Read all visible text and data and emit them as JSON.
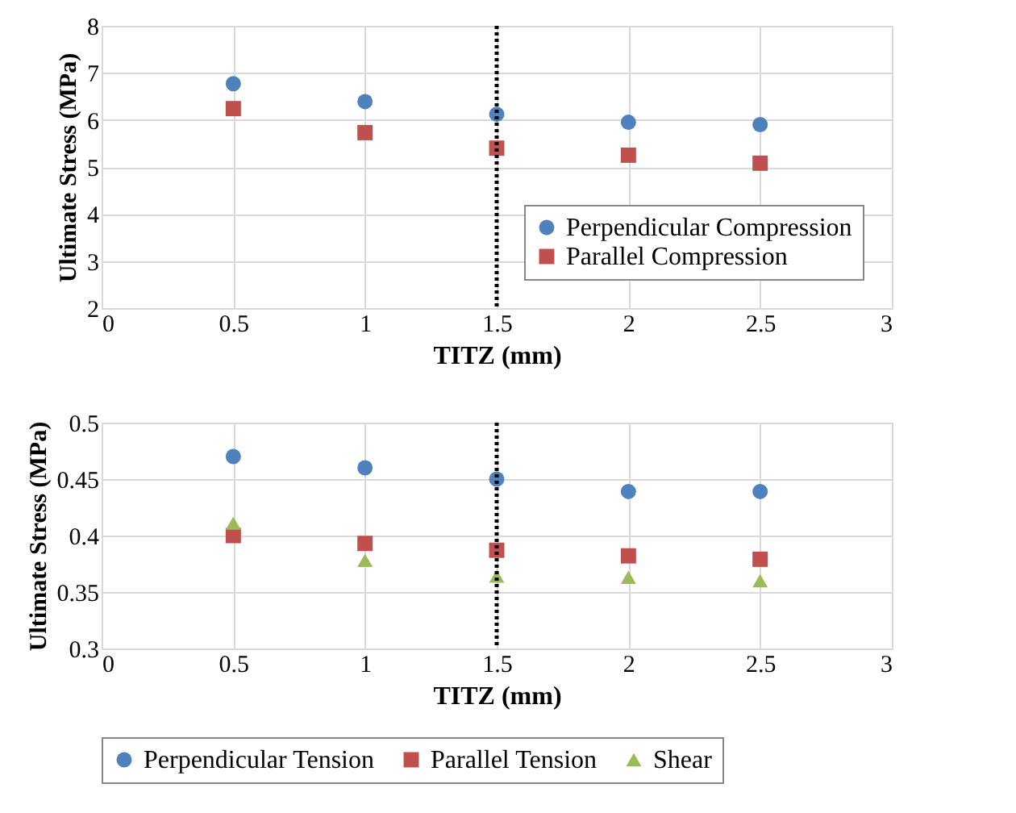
{
  "chart_data": [
    {
      "type": "scatter",
      "xlabel": "TITZ (mm)",
      "ylabel": "Ultimate Stress (MPa)",
      "x": [
        0.5,
        1,
        1.5,
        2,
        2.5
      ],
      "xlim": [
        0,
        3
      ],
      "xticks": [
        0,
        0.5,
        1,
        1.5,
        2,
        2.5,
        3
      ],
      "ylim": [
        2,
        8
      ],
      "yticks": [
        2,
        3,
        4,
        5,
        6,
        7,
        8
      ],
      "grid": true,
      "legend": "bottom right",
      "series": [
        {
          "name": "Perpendicular Compression",
          "color": "#4f81bd",
          "marker": "circle",
          "values": [
            6.77,
            6.39,
            6.12,
            5.95,
            5.9
          ]
        },
        {
          "name": "Parallel Compression",
          "color": "#c0504d",
          "marker": "square",
          "values": [
            6.24,
            5.73,
            5.4,
            5.25,
            5.08
          ]
        }
      ],
      "ref_lines": [
        {
          "axis": "x",
          "value": 1.5,
          "color": "#000000",
          "line_style": "dotted"
        }
      ]
    },
    {
      "type": "scatter",
      "xlabel": "TITZ (mm)",
      "ylabel": "Ultimate Stress (MPa)",
      "x": [
        0.5,
        1,
        1.5,
        2,
        2.5
      ],
      "xlim": [
        0,
        3
      ],
      "xticks": [
        0,
        0.5,
        1,
        1.5,
        2,
        2.5,
        3
      ],
      "ylim": [
        0.3,
        0.5
      ],
      "yticks": [
        0.3,
        0.35,
        0.4,
        0.45,
        0.5
      ],
      "grid": true,
      "legend": "bottom",
      "series": [
        {
          "name": "Perpendicular Tension",
          "color": "#4f81bd",
          "marker": "circle",
          "values": [
            0.47,
            0.46,
            0.45,
            0.439,
            0.439
          ]
        },
        {
          "name": "Parallel Tension",
          "color": "#c0504d",
          "marker": "square",
          "values": [
            0.4,
            0.393,
            0.387,
            0.382,
            0.379
          ]
        },
        {
          "name": "Shear",
          "color": "#9bbb59",
          "marker": "triangle",
          "values": [
            0.411,
            0.378,
            0.364,
            0.363,
            0.36
          ]
        }
      ],
      "ref_lines": [
        {
          "axis": "x",
          "value": 1.5,
          "color": "#000000",
          "line_style": "dotted"
        }
      ]
    }
  ]
}
